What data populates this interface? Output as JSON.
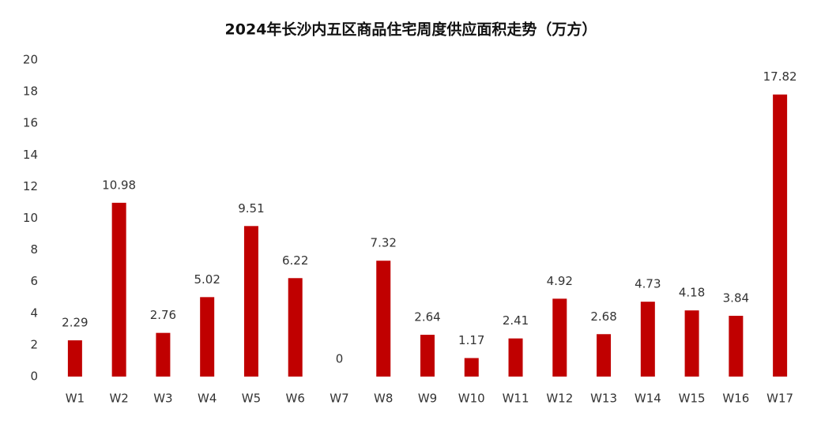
{
  "chart_data": {
    "type": "bar",
    "title": "2024年长沙内五区商品住宅周度供应面积走势（万方）",
    "categories": [
      "W1",
      "W2",
      "W3",
      "W4",
      "W5",
      "W6",
      "W7",
      "W8",
      "W9",
      "W10",
      "W11",
      "W12",
      "W13",
      "W14",
      "W15",
      "W16",
      "W17"
    ],
    "values": [
      2.29,
      10.98,
      2.76,
      5.02,
      9.51,
      6.22,
      0,
      7.32,
      2.64,
      1.17,
      2.41,
      4.92,
      2.68,
      4.73,
      4.18,
      3.84,
      17.82
    ],
    "color": "#c00000",
    "ylim": [
      0,
      20
    ],
    "yticks": [
      0,
      2,
      4,
      6,
      8,
      10,
      12,
      14,
      16,
      18,
      20
    ],
    "grid": false
  }
}
